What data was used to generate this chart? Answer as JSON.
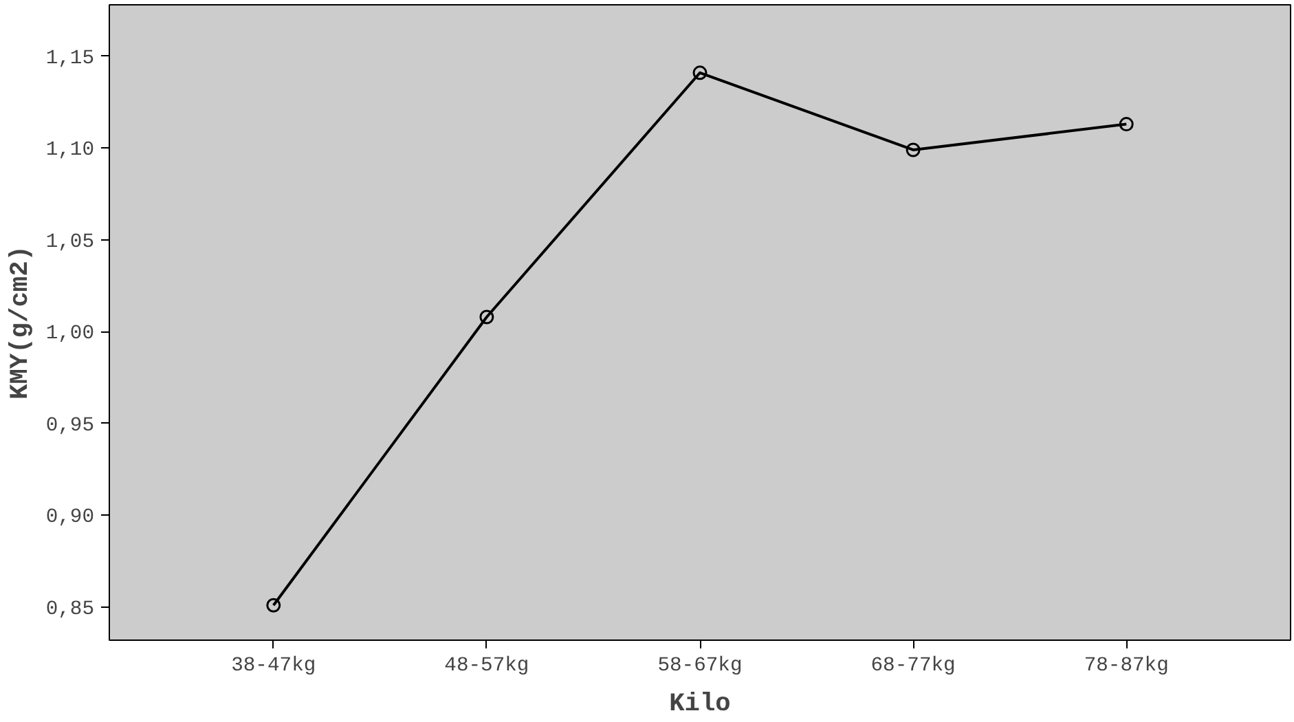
{
  "chart_data": {
    "type": "line",
    "xlabel": "Kilo",
    "ylabel": "KMY(g/cm2)",
    "categories": [
      "38-47kg",
      "48-57kg",
      "58-67kg",
      "68-77kg",
      "78-87kg"
    ],
    "series": [
      {
        "color": "#000000",
        "values": [
          0.851,
          1.008,
          1.141,
          1.099,
          1.113
        ]
      }
    ],
    "ylim": [
      0.832,
      1.178
    ],
    "yticks": [
      {
        "value": 0.85,
        "label": "0,85"
      },
      {
        "value": 0.9,
        "label": "0,90"
      },
      {
        "value": 0.95,
        "label": "0,95"
      },
      {
        "value": 1.0,
        "label": "1,00"
      },
      {
        "value": 1.05,
        "label": "1,05"
      },
      {
        "value": 1.1,
        "label": "1,10"
      },
      {
        "value": 1.15,
        "label": "1,15"
      }
    ],
    "grid": false,
    "marker": "circle",
    "line_style": "solid"
  }
}
